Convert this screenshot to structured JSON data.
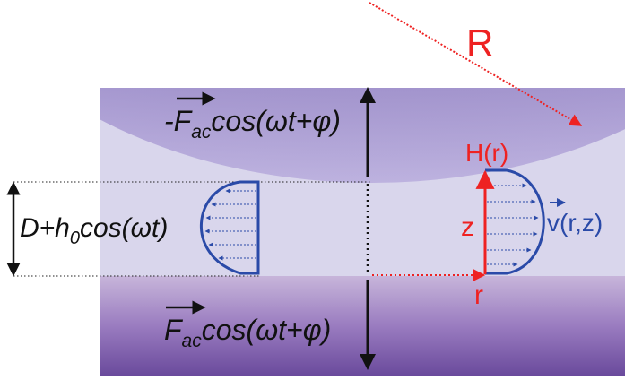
{
  "labels": {
    "radius": "R",
    "force_top": {
      "prefix": "-",
      "symbol": "F",
      "subscript": "ac",
      "tail": "cos(ωt+φ)"
    },
    "force_bottom": {
      "symbol": "F",
      "subscript": "ac",
      "tail": "cos(ωt+φ)"
    },
    "gap": {
      "head": "D+h",
      "subscript": "0",
      "tail": "cos(ωt)"
    },
    "height_func": "H(r)",
    "z_axis": "z",
    "r_axis": "r",
    "velocity": "v(r,z)"
  },
  "colors": {
    "red": "#ee2222",
    "blue": "#2a4aa8",
    "black": "#111111",
    "liquid": "#d9d6ec",
    "sphere_dark": "#7b68b3",
    "sphere_light": "#b5a8d8",
    "plate_dark": "#6a4a9c",
    "plate_light": "#c4b2d8"
  }
}
